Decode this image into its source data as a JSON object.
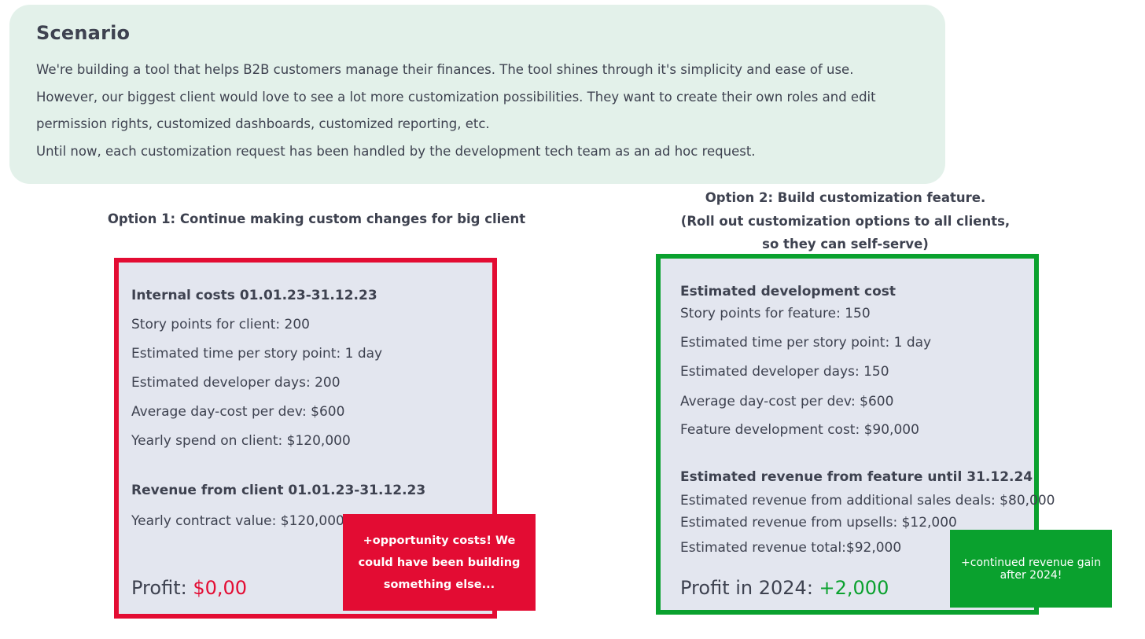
{
  "scenario": {
    "title": "Scenario",
    "lines": [
      "We're building a tool that helps B2B customers manage their finances. The tool shines through it's simplicity and ease of use.",
      "However, our biggest client would love to see a lot more customization possibilities. They want to create their own roles and edit",
      "permission rights, customized dashboards, customized reporting, etc.",
      "Until now, each customization request has been handled by the development tech team as an ad hoc request."
    ]
  },
  "option1": {
    "heading": "Option 1: Continue making custom changes for big client",
    "costs_heading": "Internal costs 01.01.23-31.12.23",
    "costs": [
      "Story points for client: 200",
      "Estimated time per story point: 1 day",
      "Estimated developer days: 200",
      "Average day-cost per dev: $600",
      "Yearly spend on client: $120,000"
    ],
    "revenue_heading": "Revenue from client 01.01.23-31.12.23",
    "revenue": [
      "Yearly contract value: $120,000"
    ],
    "profit_label": "Profit: ",
    "profit_value": "$0,00",
    "note": "+opportunity costs! We could have been building something else..."
  },
  "option2": {
    "heading_lines": [
      "Option 2: Build customization feature.",
      "(Roll out customization options to all clients,",
      "so they can self-serve)"
    ],
    "cost_heading": "Estimated development cost",
    "costs": [
      "Story points for feature: 150",
      "Estimated time per story point: 1 day",
      "Estimated developer days: 150",
      "Average day-cost per dev: $600",
      "Feature development cost: $90,000"
    ],
    "revenue_heading": "Estimated revenue from feature until 31.12.24",
    "revenue": [
      "Estimated revenue from additional sales deals: $80,000",
      "Estimated revenue from upsells: $12,000",
      "Estimated revenue total:$92,000"
    ],
    "profit_label": "Profit in 2024: ",
    "profit_value": "+2,000",
    "note": "+continued revenue gain after 2024!"
  },
  "colors": {
    "scenario_bg": "#e3f1ea",
    "card_bg": "#e3e6ef",
    "red": "#e30c33",
    "green": "#0aa12e",
    "text": "#3e4250"
  }
}
